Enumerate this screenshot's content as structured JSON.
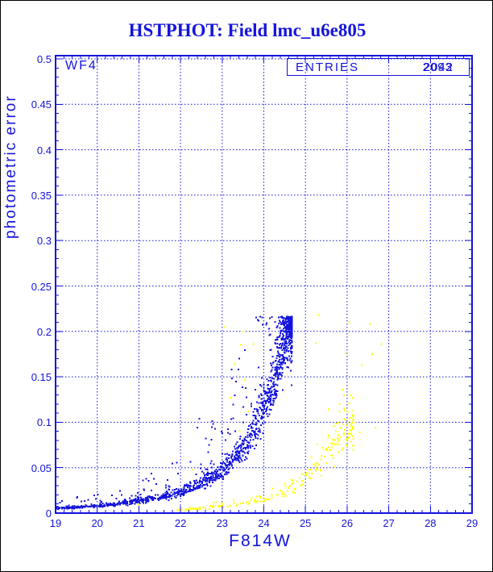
{
  "page": {
    "title": "HSTPHOT: Field lmc_u6e805"
  },
  "colors": {
    "blue": "#1414dd",
    "yellow": "#ffff00",
    "background": "#ffffff",
    "outer_border": "#000000"
  },
  "chart_data": {
    "type": "scatter",
    "title": "HSTPHOT: Field lmc_u6e805",
    "xlabel": "F814W",
    "ylabel": "photometric error",
    "xlim": [
      19,
      29
    ],
    "ylim": [
      0,
      0.5
    ],
    "grid": "dashed, at every major tick",
    "legend_position": "none",
    "x_major_ticks": [
      19,
      20,
      21,
      22,
      23,
      24,
      25,
      26,
      27,
      28,
      29
    ],
    "x_tick_labels": [
      "19",
      "20",
      "21",
      "22",
      "23",
      "24",
      "25",
      "26",
      "27",
      "28",
      "29"
    ],
    "x_minor_step": 0.2,
    "y_major_ticks": [
      0,
      0.05,
      0.1,
      0.15,
      0.2,
      0.25,
      0.3,
      0.35,
      0.4,
      0.45,
      0.5
    ],
    "y_tick_labels": [
      "0",
      "0.05",
      "0.1",
      "0.15",
      "0.2",
      "0.25",
      "0.3",
      "0.35",
      "0.4",
      "0.45",
      "0.5"
    ],
    "y_minor_step": 0.01,
    "annotations": {
      "chip_label": "WF4",
      "entries_label": "ENTRIES",
      "entries_values": [
        "2093",
        "2042"
      ]
    },
    "seed": 42,
    "series": [
      {
        "name": "blue-detections",
        "color": "#1414dd",
        "marker": "square",
        "marker_px": 2,
        "ridge": [
          [
            19,
            0.0055
          ],
          [
            19.5,
            0.0065
          ],
          [
            20,
            0.008
          ],
          [
            20.5,
            0.0102
          ],
          [
            21,
            0.0132
          ],
          [
            21.5,
            0.0175
          ],
          [
            22,
            0.0235
          ],
          [
            22.5,
            0.0325
          ],
          [
            23,
            0.047
          ],
          [
            23.3,
            0.0605
          ],
          [
            23.6,
            0.0795
          ],
          [
            23.9,
            0.1045
          ],
          [
            24.1,
            0.1275
          ],
          [
            24.3,
            0.1555
          ],
          [
            24.45,
            0.181
          ],
          [
            24.55,
            0.2
          ],
          [
            24.68,
            0.216
          ]
        ],
        "n_ridge": 1550,
        "x_range": [
          19,
          24.68
        ],
        "x_power": 2.2,
        "log_scatter": 0.12,
        "tail_fraction": 0.09,
        "tail_boost": 1.6,
        "y_cut": 0.2165,
        "outliers": []
      },
      {
        "name": "yellow-detections",
        "color": "#ffff00",
        "marker": "square",
        "marker_px": 2,
        "ridge": [
          [
            21.9,
            0.0035
          ],
          [
            22.3,
            0.0045
          ],
          [
            22.7,
            0.006
          ],
          [
            23,
            0.008
          ],
          [
            23.5,
            0.0112
          ],
          [
            24,
            0.016
          ],
          [
            24.4,
            0.0225
          ],
          [
            24.8,
            0.0325
          ],
          [
            25.2,
            0.0475
          ],
          [
            25.6,
            0.068
          ],
          [
            25.9,
            0.0875
          ],
          [
            26.15,
            0.103
          ]
        ],
        "n_ridge": 230,
        "x_range": [
          21.9,
          26.15
        ],
        "x_power": 1.8,
        "log_scatter": 0.16,
        "tail_fraction": 0.05,
        "tail_boost": 1.2,
        "y_cut": 0.22,
        "outliers": [
          [
            21.0,
            0.0095
          ],
          [
            22.3,
            0.048
          ],
          [
            23.05,
            0.205
          ],
          [
            23.5,
            0.2
          ],
          [
            23.45,
            0.185
          ],
          [
            23.75,
            0.186
          ],
          [
            23.3,
            0.164
          ],
          [
            23.55,
            0.147
          ],
          [
            23.2,
            0.127
          ],
          [
            23.62,
            0.112
          ],
          [
            23.42,
            0.09
          ],
          [
            25.25,
            0.187
          ],
          [
            25.32,
            0.218
          ],
          [
            26.05,
            0.21
          ],
          [
            26.55,
            0.208
          ],
          [
            26.82,
            0.186
          ],
          [
            26.6,
            0.175
          ],
          [
            26.35,
            0.163
          ],
          [
            25.92,
            0.115
          ],
          [
            26.2,
            0.1
          ],
          [
            26.68,
            0.094
          ],
          [
            26.3,
            0.089
          ]
        ]
      }
    ]
  }
}
